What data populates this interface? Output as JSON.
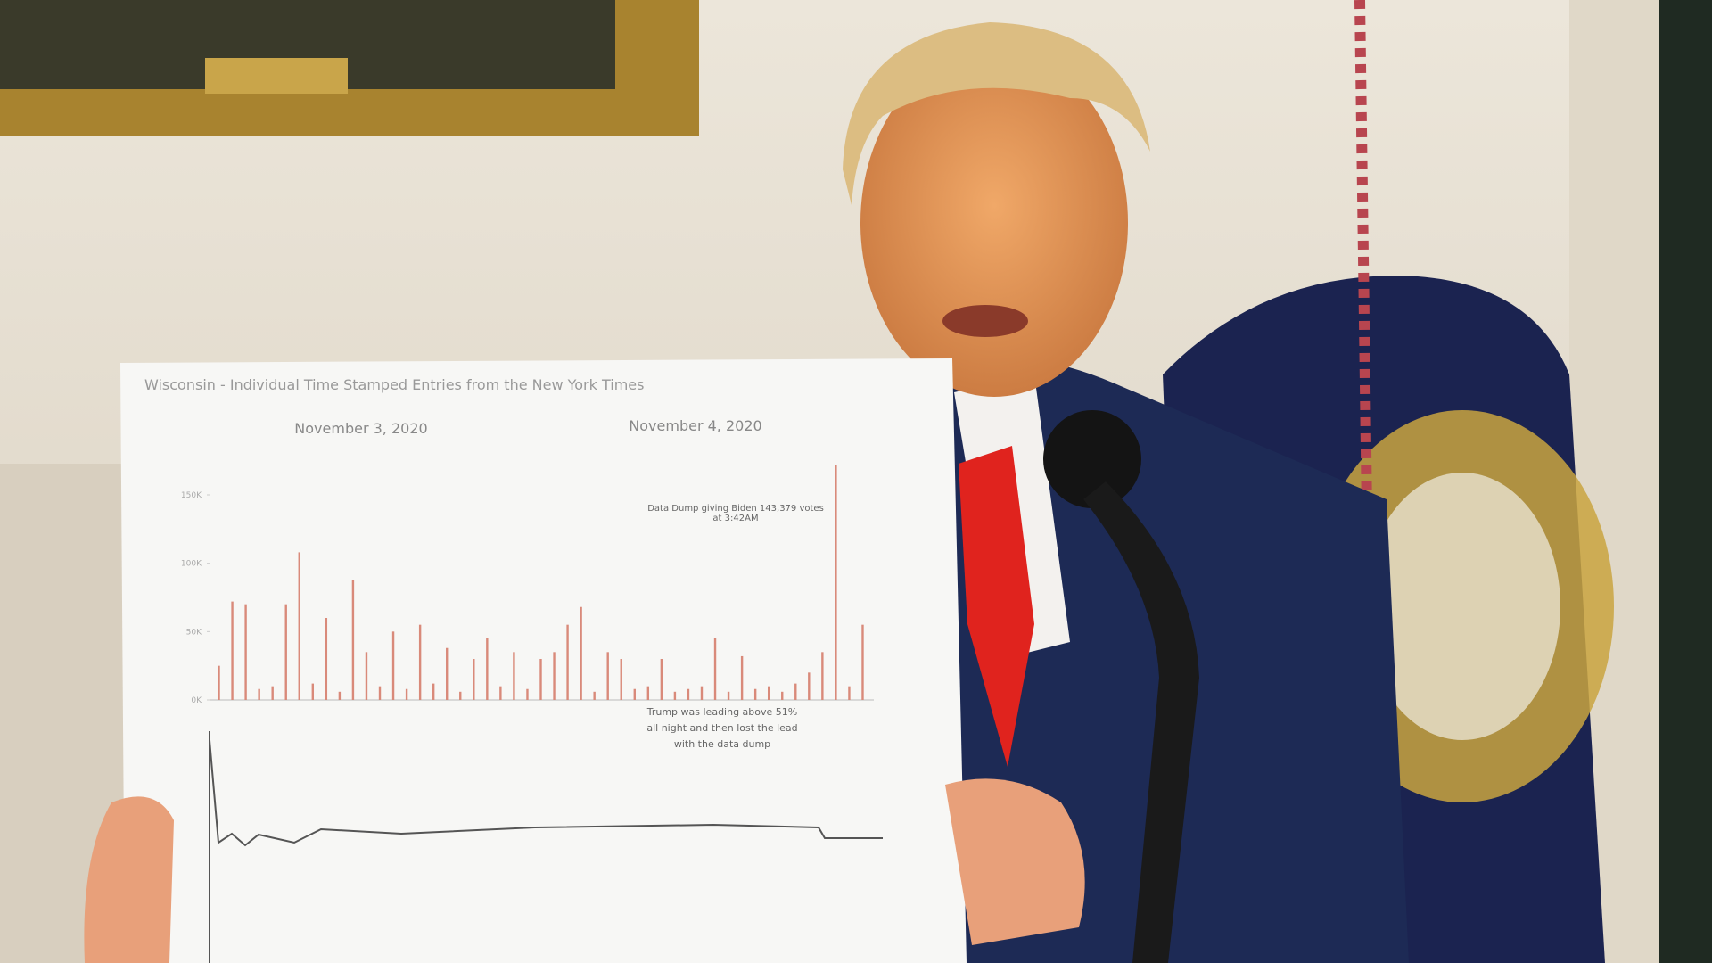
{
  "sign": {
    "title": "Wisconsin - Individual Time Stamped Entries from the New York Times",
    "date_1": "November 3, 2020",
    "date_2": "November 4, 2020",
    "annotation_dump": "Data Dump giving Biden 143,379 votes at 3:42AM",
    "annotation_lead": "Trump was leading above 51% all night and then lost the lead with the data dump",
    "chart_data": {
      "type": "bar",
      "color": "#d98a7a",
      "values": [
        25,
        72,
        70,
        8,
        10,
        70,
        108,
        12,
        60,
        6,
        88,
        35,
        10,
        50,
        8,
        55,
        12,
        38,
        6,
        30,
        45,
        10,
        35,
        8,
        30,
        35,
        55,
        68,
        6,
        35,
        30,
        8,
        10,
        30,
        6,
        8,
        10,
        45,
        6,
        32,
        8,
        10,
        6,
        12,
        20,
        35,
        172,
        10,
        55
      ],
      "ylim": [
        0,
        150
      ],
      "yticks": [
        {
          "value": 0,
          "label": "0K"
        },
        {
          "value": 50,
          "label": "50K"
        },
        {
          "value": 100,
          "label": "100K"
        },
        {
          "value": 150,
          "label": "150K"
        }
      ]
    }
  }
}
